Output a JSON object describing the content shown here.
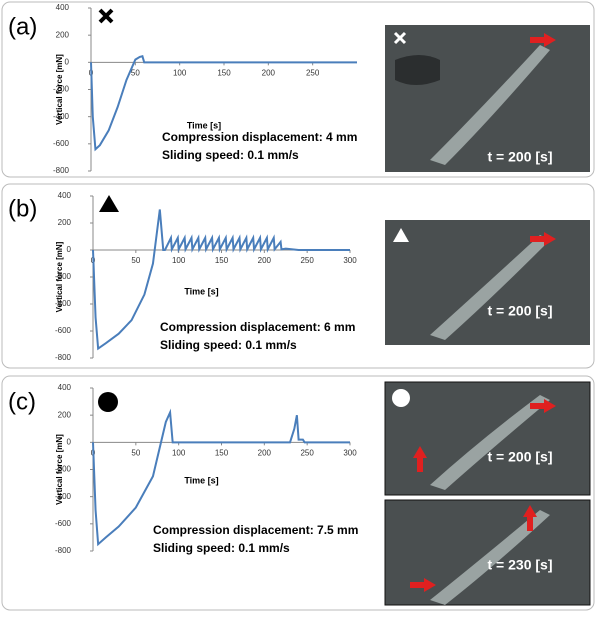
{
  "chart_data": [
    {
      "type": "line",
      "panel_label": "(a)",
      "xlabel": "Time [s]",
      "ylabel": "Vertical force [mN]",
      "color": "#4a7ebb",
      "x": [
        0,
        2,
        5,
        10,
        20,
        30,
        40,
        50,
        55,
        58,
        60,
        100,
        300
      ],
      "values": [
        0,
        -400,
        -640,
        -610,
        -500,
        -330,
        -130,
        20,
        40,
        45,
        0,
        0,
        0
      ],
      "xlim": [
        0,
        300
      ],
      "xticks": [
        0,
        50,
        100,
        150,
        200,
        250
      ],
      "ylim": [
        -800,
        400
      ],
      "yticks": [
        -800,
        -600,
        -400,
        -200,
        0,
        200,
        400
      ],
      "annotations": [
        "Compression displacement: 4 mm",
        "Sliding speed: 0.1 mm/s"
      ],
      "photo_labels": [
        "t = 200 [s]"
      ]
    },
    {
      "type": "line",
      "panel_label": "(b)",
      "xlabel": "Time [s]",
      "ylabel": "Vertical force [mN]",
      "color": "#4a7ebb",
      "x": [
        0,
        3,
        6,
        15,
        30,
        45,
        60,
        70,
        78,
        82,
        84,
        91,
        92,
        99,
        100,
        107,
        108,
        115,
        116,
        123,
        124,
        131,
        132,
        139,
        140,
        147,
        148,
        155,
        156,
        163,
        164,
        171,
        172,
        179,
        180,
        187,
        188,
        195,
        196,
        203,
        204,
        211,
        212,
        219,
        220,
        225,
        240,
        300
      ],
      "values": [
        0,
        -500,
        -730,
        -690,
        -620,
        -520,
        -330,
        -100,
        300,
        0,
        0,
        90,
        5,
        90,
        5,
        90,
        5,
        90,
        5,
        90,
        5,
        90,
        5,
        90,
        5,
        90,
        5,
        90,
        5,
        90,
        5,
        90,
        5,
        90,
        5,
        90,
        5,
        90,
        5,
        90,
        5,
        90,
        5,
        60,
        5,
        10,
        0,
        0
      ],
      "xlim": [
        0,
        300
      ],
      "xticks": [
        0,
        50,
        100,
        150,
        200,
        250,
        300
      ],
      "ylim": [
        -800,
        400
      ],
      "yticks": [
        -800,
        -600,
        -400,
        -200,
        0,
        200,
        400
      ],
      "annotations": [
        "Compression displacement: 6 mm",
        "Sliding speed: 0.1 mm/s"
      ],
      "photo_labels": [
        "t = 200 [s]"
      ]
    },
    {
      "type": "line",
      "panel_label": "(c)",
      "xlabel": "Time [s]",
      "ylabel": "Vertical force [mN]",
      "color": "#4a7ebb",
      "x": [
        0,
        3,
        6,
        15,
        30,
        50,
        70,
        85,
        90,
        93,
        230,
        235,
        238,
        240,
        245,
        247,
        300
      ],
      "values": [
        0,
        -500,
        -750,
        -700,
        -620,
        -480,
        -250,
        150,
        220,
        0,
        0,
        100,
        200,
        20,
        20,
        0,
        0
      ],
      "xlim": [
        0,
        300
      ],
      "xticks": [
        0,
        50,
        100,
        150,
        200,
        250,
        300
      ],
      "ylim": [
        -800,
        400
      ],
      "yticks": [
        -800,
        -600,
        -400,
        -200,
        0,
        200,
        400
      ],
      "annotations": [
        "Compression displacement: 7.5 mm",
        "Sliding speed: 0.1 mm/s"
      ],
      "photo_labels": [
        "t = 200 [s]",
        "t = 230 [s]"
      ]
    }
  ]
}
